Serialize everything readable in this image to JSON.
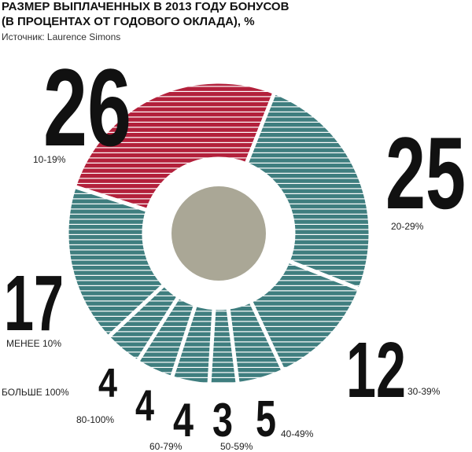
{
  "chart_data": {
    "type": "donut",
    "title": [
      "РАЗМЕР ВЫПЛАЧЕННЫХ В 2013 ГОДУ БОНУСОВ",
      "(В ПРОЦЕНТАХ ОТ ГОДОВОГО ОКЛАДА), %"
    ],
    "subtitle": "Источник: Laurence Simons",
    "categories": [
      "10-19%",
      "20-29%",
      "30-39%",
      "40-49%",
      "50-59%",
      "60-79%",
      "80-100%",
      "БОЛЬШЕ 100%",
      "МЕНЕЕ 10%"
    ],
    "values": [
      26,
      25,
      12,
      5,
      3,
      4,
      4,
      4,
      17
    ],
    "colors": [
      "#b3203b",
      "#3f7e7f",
      "#3f7e7f",
      "#3f7e7f",
      "#3f7e7f",
      "#3f7e7f",
      "#3f7e7f",
      "#3f7e7f",
      "#3f7e7f"
    ],
    "center_color": "#aaa796"
  }
}
